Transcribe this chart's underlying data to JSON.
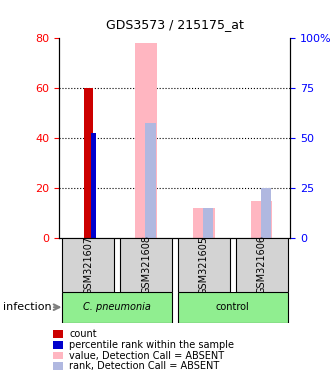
{
  "title": "GDS3573 / 215175_at",
  "samples": [
    "GSM321607",
    "GSM321608",
    "GSM321605",
    "GSM321606"
  ],
  "groups": [
    "C. pneumonia",
    "C. pneumonia",
    "control",
    "control"
  ],
  "group_labels": [
    "C. pneumonia",
    "control"
  ],
  "group_colors": [
    "#90EE90",
    "#90EE90"
  ],
  "ylim_left": [
    0,
    80
  ],
  "ylim_right": [
    0,
    100
  ],
  "yticks_left": [
    0,
    20,
    40,
    60,
    80
  ],
  "yticks_right": [
    0,
    25,
    50,
    75,
    100
  ],
  "yticklabels_right": [
    "0",
    "25",
    "50",
    "75",
    "100%"
  ],
  "count_values": [
    60,
    0,
    0,
    0
  ],
  "count_color": "#CC0000",
  "percentile_values": [
    42,
    0,
    0,
    0
  ],
  "percentile_color": "#0000CC",
  "value_absent_values": [
    0,
    78,
    12,
    15
  ],
  "value_absent_color": "#FFB6C1",
  "rank_absent_values": [
    0,
    46,
    12,
    20
  ],
  "rank_absent_color": "#B0B8E0",
  "bar_width": 0.15,
  "sample_box_color": "#D3D3D3",
  "infection_label": "infection",
  "legend_items": [
    {
      "label": "count",
      "color": "#CC0000"
    },
    {
      "label": "percentile rank within the sample",
      "color": "#0000CC"
    },
    {
      "label": "value, Detection Call = ABSENT",
      "color": "#FFB6C1"
    },
    {
      "label": "rank, Detection Call = ABSENT",
      "color": "#B0B8E0"
    }
  ]
}
